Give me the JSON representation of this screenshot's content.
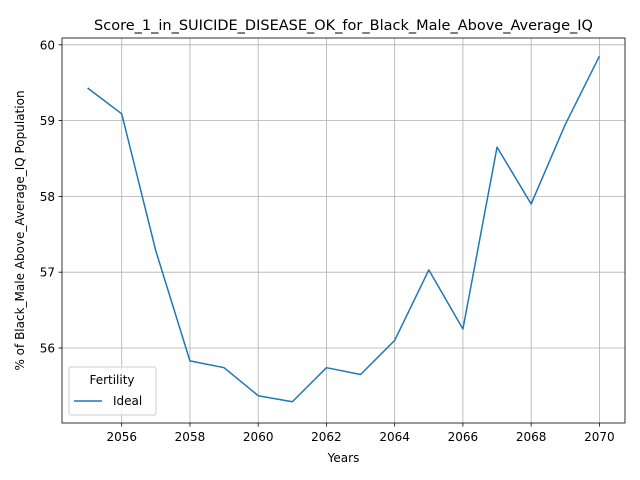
{
  "chart_data": {
    "type": "line",
    "title": "Score_1_in_SUICIDE_DISEASE_OK_for_Black_Male_Above_Average_IQ",
    "xlabel": "Years",
    "ylabel": "% of Black_Male Above_Average_IQ Population",
    "x": [
      2055,
      2056,
      2057,
      2058,
      2059,
      2060,
      2061,
      2062,
      2063,
      2064,
      2065,
      2066,
      2067,
      2068,
      2069,
      2070
    ],
    "series": [
      {
        "name": "Ideal",
        "color": "#1f77b4",
        "values": [
          59.43,
          59.09,
          57.28,
          55.83,
          55.74,
          55.37,
          55.29,
          55.74,
          55.65,
          56.1,
          57.03,
          56.25,
          58.65,
          57.9,
          58.95,
          59.85
        ]
      }
    ],
    "xlim": [
      2054.25,
      2070.75
    ],
    "ylim": [
      55.01,
      60.09
    ],
    "xticks": [
      "2056",
      "2058",
      "2060",
      "2062",
      "2064",
      "2066",
      "2068",
      "2070"
    ],
    "yticks": [
      "56",
      "57",
      "58",
      "59",
      "60"
    ],
    "grid": true,
    "legend": {
      "title": "Fertility",
      "position": "lower-left"
    }
  }
}
